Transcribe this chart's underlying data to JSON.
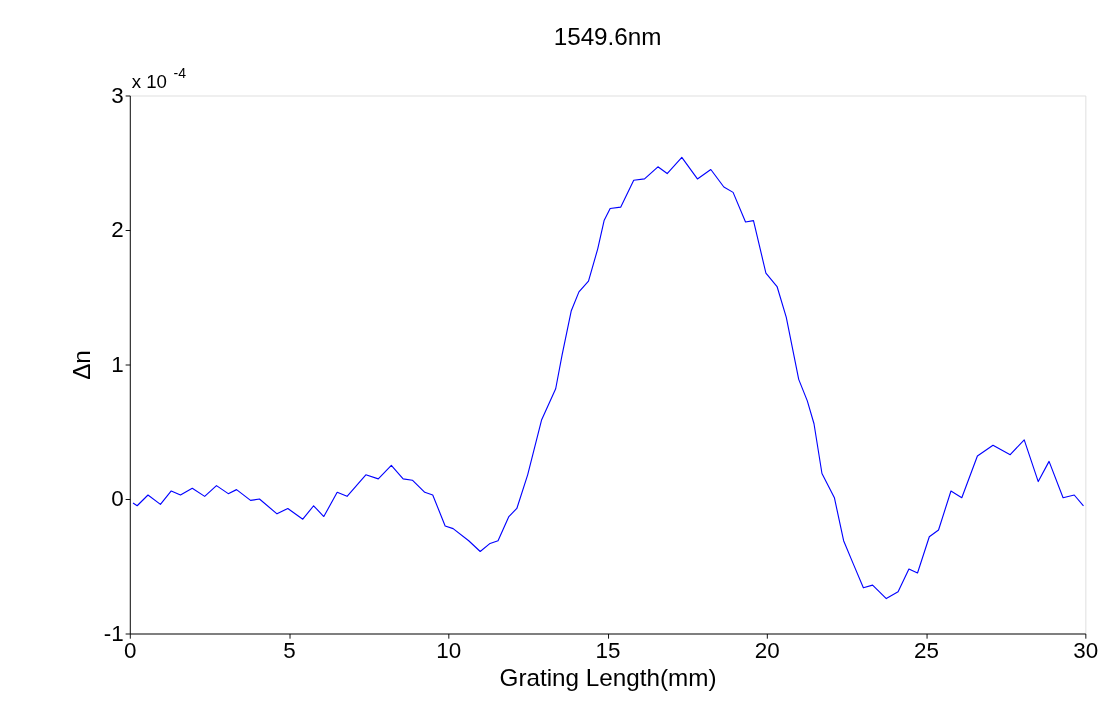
{
  "chart_data": {
    "type": "line",
    "title": "1549.6nm",
    "xlabel": "Grating Length(mm)",
    "ylabel": "Δn",
    "annotations": [
      "x 10$^{-4}$"
    ],
    "x": [
      0.1,
      0.23,
      0.57,
      0.96,
      1.3,
      1.59,
      1.96,
      2.35,
      2.72,
      3.09,
      3.35,
      3.79,
      4.07,
      4.62,
      4.96,
      5.43,
      5.77,
      6.09,
      6.51,
      6.82,
      7.41,
      7.8,
      8.21,
      8.58,
      8.87,
      9.26,
      9.51,
      9.9,
      10.15,
      10.64,
      11.0,
      11.31,
      11.56,
      11.9,
      12.15,
      12.49,
      12.93,
      13.37,
      13.57,
      13.86,
      14.1,
      14.4,
      14.69,
      14.89,
      15.08,
      15.41,
      15.82,
      16.16,
      16.58,
      16.87,
      17.33,
      17.82,
      18.24,
      18.65,
      18.94,
      19.33,
      19.58,
      19.97,
      20.32,
      20.61,
      21.0,
      21.27,
      21.48,
      21.73,
      22.12,
      22.41,
      22.71,
      23.03,
      23.32,
      23.75,
      24.12,
      24.46,
      24.73,
      25.1,
      25.39,
      25.78,
      26.12,
      26.61,
      27.1,
      27.64,
      28.08,
      28.52,
      28.86,
      29.3,
      29.65,
      29.94
    ],
    "series": [
      {
        "color": "#0000ff",
        "values": [
          -0.03,
          -0.05,
          0.03,
          -0.04,
          0.06,
          0.03,
          0.08,
          0.02,
          0.1,
          0.04,
          0.07,
          -0.01,
          0.0,
          -0.11,
          -0.07,
          -0.15,
          -0.05,
          -0.13,
          0.05,
          0.02,
          0.18,
          0.15,
          0.25,
          0.15,
          0.14,
          0.05,
          0.03,
          -0.2,
          -0.22,
          -0.31,
          -0.39,
          -0.33,
          -0.31,
          -0.13,
          -0.07,
          0.18,
          0.59,
          0.82,
          1.07,
          1.4,
          1.54,
          1.62,
          1.86,
          2.07,
          2.16,
          2.17,
          2.37,
          2.38,
          2.47,
          2.42,
          2.54,
          2.38,
          2.45,
          2.32,
          2.28,
          2.06,
          2.07,
          1.68,
          1.58,
          1.35,
          0.89,
          0.73,
          0.56,
          0.19,
          0.01,
          -0.31,
          -0.48,
          -0.66,
          -0.64,
          -0.74,
          -0.69,
          -0.52,
          -0.55,
          -0.28,
          -0.23,
          0.06,
          0.01,
          0.32,
          0.4,
          0.33,
          0.44,
          0.13,
          0.28,
          0.01,
          0.03,
          -0.05
        ]
      }
    ],
    "xlim": [
      0,
      30
    ],
    "xticks": [
      0,
      5,
      10,
      15,
      20,
      25,
      30
    ],
    "ylim": [
      -1,
      3
    ],
    "yticks": [
      -1,
      0,
      1,
      2,
      3
    ],
    "grid": false,
    "line_style": "solid",
    "marker": "none"
  }
}
